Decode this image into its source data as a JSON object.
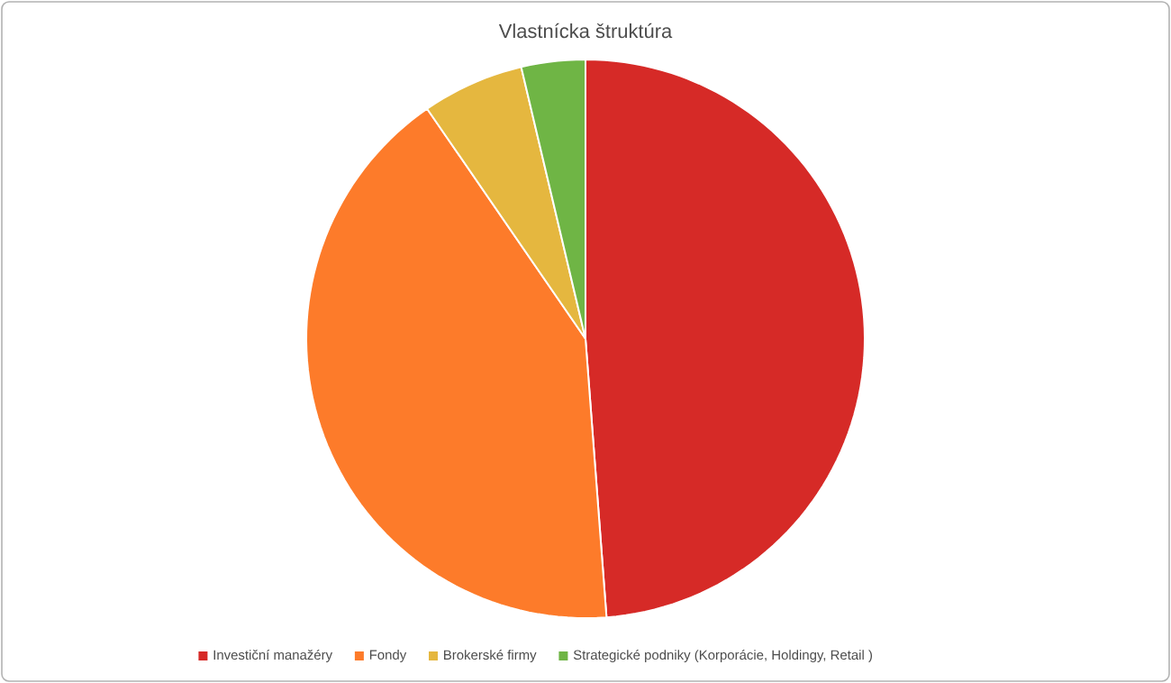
{
  "chart_data": {
    "type": "pie",
    "title": "Vlastnícka štruktúra",
    "categories": [
      "Investiční manažéry",
      "Fondy",
      "Brokerské firmy",
      "Strategické podniky (Korporácie, Holdingy, Retail )"
    ],
    "values": [
      48.8,
      41.6,
      5.9,
      3.7
    ],
    "colors": [
      "#d62a27",
      "#fd7b2a",
      "#e5b73f",
      "#6fb545"
    ],
    "legend": "bottom"
  }
}
